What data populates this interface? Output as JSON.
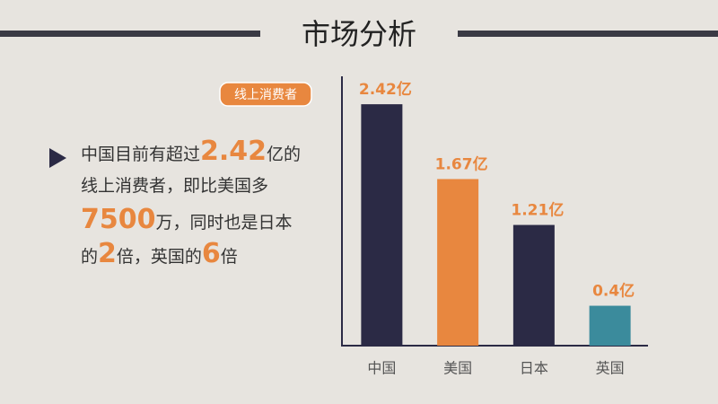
{
  "chart_data": {
    "type": "bar",
    "title": "市场分析",
    "subtitle": "线上消费者",
    "annotation_lines": [
      [
        {
          "text": "中国目前有超过"
        },
        {
          "text": "2.42",
          "highlight": true
        },
        {
          "text": "亿的"
        }
      ],
      [
        {
          "text": "线上消费者，即比美国多"
        }
      ],
      [
        {
          "text": "7500",
          "highlight": true
        },
        {
          "text": "万，同时也是日本"
        }
      ],
      [
        {
          "text": "的"
        },
        {
          "text": "2",
          "highlight": true
        },
        {
          "text": "倍，英国的"
        },
        {
          "text": "6",
          "highlight": true
        },
        {
          "text": "倍"
        }
      ]
    ],
    "categories": [
      "中国",
      "美国",
      "日本",
      "英国"
    ],
    "values": [
      2.42,
      1.67,
      1.21,
      0.4
    ],
    "value_labels": [
      "2.42亿",
      "1.67亿",
      "1.21亿",
      "0.4亿"
    ],
    "colors": [
      "#2b2a45",
      "#e8873f",
      "#2b2a45",
      "#3b8b9c"
    ],
    "ylim": [
      0,
      2.7
    ]
  }
}
